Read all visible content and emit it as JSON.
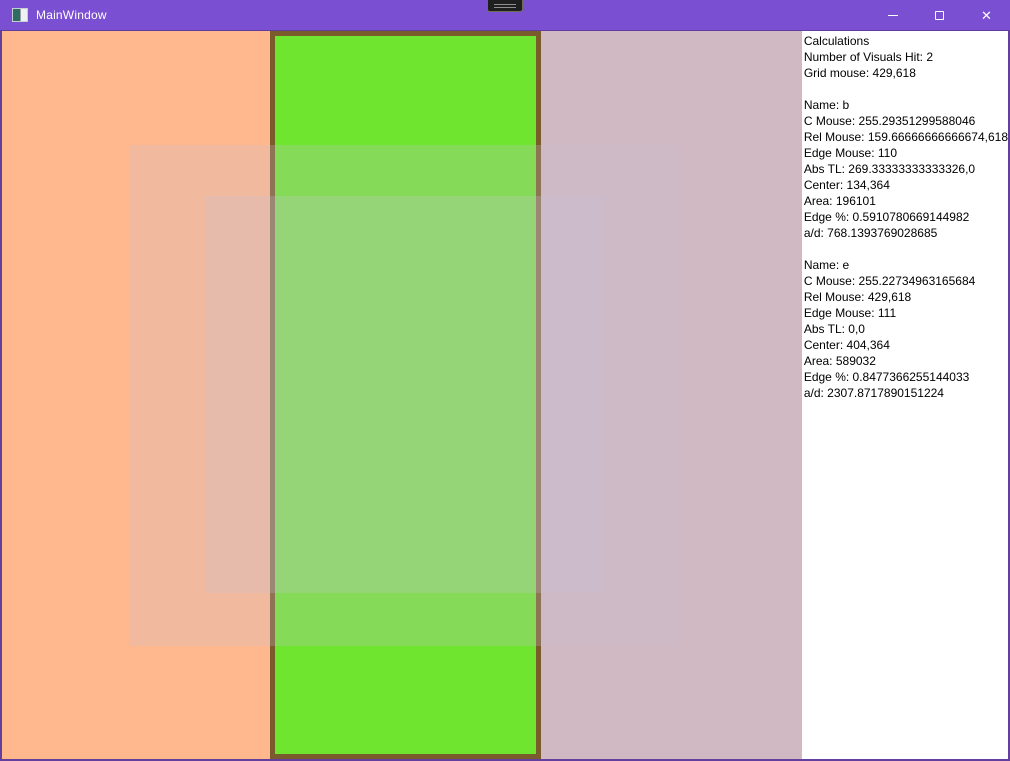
{
  "window": {
    "title": "MainWindow",
    "icons": {
      "app_icon": "window-split-icon",
      "minimize": "minimize-icon",
      "maximize": "maximize-icon",
      "close_glyph": "✕"
    },
    "colors": {
      "titlebar_purple": "#7B4FD2",
      "window_border_purple": "#63409F",
      "orange_rect": "#FFB88E",
      "rect_b_fill": "#6FE52F",
      "rect_b_border": "#7A5B2B",
      "canvas_base_mauve": "#D0B9C3",
      "overlay": "rgba(200,190,210,0.25)"
    }
  },
  "panel": {
    "title": "Calculations",
    "summary": [
      "Number of Visuals Hit: 2",
      "Grid mouse: 429,618"
    ],
    "blocks": [
      {
        "lines": [
          "Name: b",
          "C Mouse: 255.29351299588046",
          "Rel Mouse: 159.66666666666674,618",
          "Edge Mouse: 110",
          "Abs TL: 269.33333333333326,0",
          "Center: 134,364",
          "Area: 196101",
          "Edge %: 0.5910780669144982",
          "a/d: 768.1393769028685"
        ]
      },
      {
        "lines": [
          "Name: e",
          "C Mouse: 255.22734963165684",
          "Rel Mouse: 429,618",
          "Edge Mouse: 111",
          "Abs TL: 0,0",
          "Center: 404,364",
          "Area: 589032",
          "Edge %: 0.8477366255144033",
          "a/d: 2307.8717890151224"
        ]
      }
    ]
  }
}
